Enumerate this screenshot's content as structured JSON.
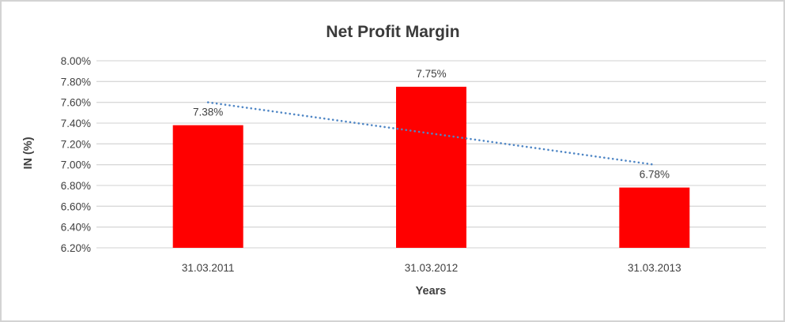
{
  "chart_data": {
    "type": "bar",
    "title": "Net Profit Margin",
    "xlabel": "Years",
    "ylabel": "IN (%)",
    "categories": [
      "31.03.2011",
      "31.03.2012",
      "31.03.2013"
    ],
    "values": [
      7.38,
      7.75,
      6.78
    ],
    "data_labels": [
      "7.38%",
      "7.75%",
      "6.78%"
    ],
    "ylim": [
      6.2,
      8.0
    ],
    "ytick_step": 0.2,
    "ytick_labels": [
      "8.00%",
      "7.80%",
      "7.60%",
      "7.40%",
      "7.20%",
      "7.00%",
      "6.80%",
      "6.60%",
      "6.40%",
      "6.20%"
    ],
    "grid": true,
    "legend": "none",
    "trendline": {
      "type": "linear",
      "style": "dotted",
      "y_start": 7.6,
      "y_end": 7.0
    },
    "colors": {
      "bar": "#ff0000",
      "trendline": "#4f86c5",
      "gridline": "#d9d9d9",
      "axis_text": "#3f3f3f",
      "title_text": "#3a3a3a"
    }
  }
}
